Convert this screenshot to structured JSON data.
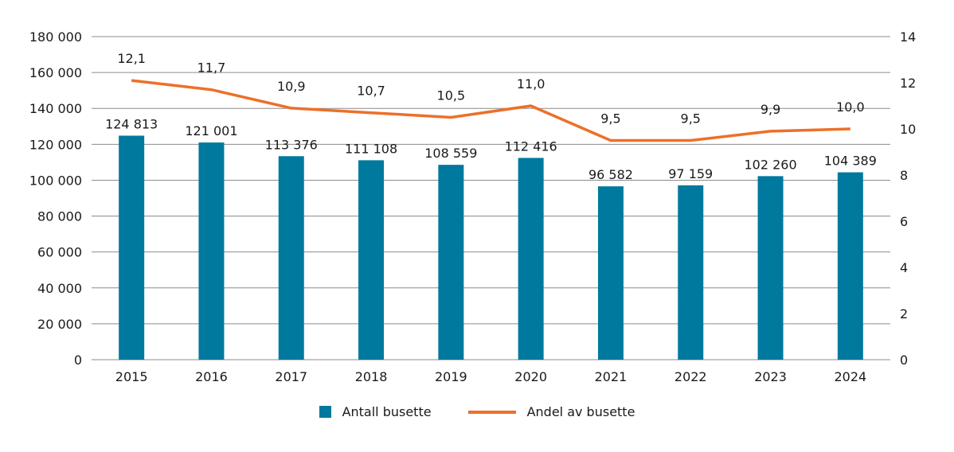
{
  "chart_data": {
    "type": "bar+line",
    "categories": [
      "2015",
      "2016",
      "2017",
      "2018",
      "2019",
      "2020",
      "2021",
      "2022",
      "2023",
      "2024"
    ],
    "series": [
      {
        "name": "Antall busette",
        "type": "bar",
        "axis": "left",
        "color": "#00799e",
        "values": [
          124813,
          121001,
          113376,
          111108,
          108559,
          112416,
          96582,
          97159,
          102260,
          104389
        ],
        "labels": [
          "124 813",
          "121 001",
          "113 376",
          "111 108",
          "108 559",
          "112 416",
          "96 582",
          "97 159",
          "102 260",
          "104 389"
        ]
      },
      {
        "name": "Andel av busette",
        "type": "line",
        "axis": "right",
        "color": "#ec7029",
        "values": [
          12.1,
          11.7,
          10.9,
          10.7,
          10.5,
          11.0,
          9.5,
          9.5,
          9.9,
          10.0
        ],
        "labels": [
          "12,1",
          "11,7",
          "10,9",
          "10,7",
          "10,5",
          "11,0",
          "9,5",
          "9,5",
          "9,9",
          "10,0"
        ]
      }
    ],
    "ylim_left": [
      0,
      180000
    ],
    "ylim_right": [
      0,
      14
    ],
    "left_ticks": [
      "0",
      "20 000",
      "40 000",
      "60 000",
      "80 000",
      "100 000",
      "120 000",
      "140 000",
      "160 000",
      "180 000"
    ],
    "right_ticks": [
      "0",
      "2",
      "4",
      "6",
      "8",
      "10",
      "12",
      "14"
    ],
    "grid": true,
    "legend_position": "bottom",
    "gridline_color": "#8c8c8c"
  }
}
